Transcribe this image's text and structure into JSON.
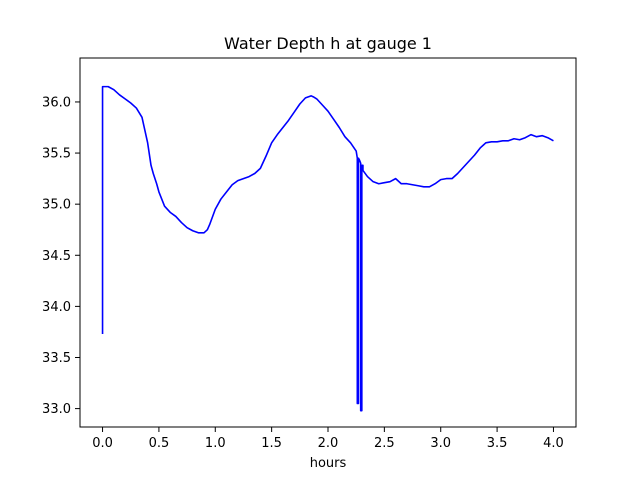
{
  "chart_data": {
    "type": "line",
    "title": "Water Depth h at gauge 1",
    "xlabel": "hours",
    "ylabel": "",
    "xlim": [
      -0.2,
      4.2
    ],
    "ylim": [
      32.82,
      36.43
    ],
    "xticks": [
      0.0,
      0.5,
      1.0,
      1.5,
      2.0,
      2.5,
      3.0,
      3.5,
      4.0
    ],
    "xtick_labels": [
      "0.0",
      "0.5",
      "1.0",
      "1.5",
      "2.0",
      "2.5",
      "3.0",
      "3.5",
      "4.0"
    ],
    "yticks": [
      33.0,
      33.5,
      34.0,
      34.5,
      35.0,
      35.5,
      36.0
    ],
    "ytick_labels": [
      "33.0",
      "33.5",
      "34.0",
      "34.5",
      "35.0",
      "35.5",
      "36.0"
    ],
    "grid": false,
    "legend": false,
    "series": [
      {
        "color": "#0000ff",
        "x": [
          0.0,
          0.0,
          0.05,
          0.1,
          0.15,
          0.2,
          0.25,
          0.3,
          0.35,
          0.4,
          0.43,
          0.45,
          0.48,
          0.5,
          0.55,
          0.6,
          0.65,
          0.7,
          0.75,
          0.8,
          0.85,
          0.9,
          0.93,
          0.95,
          1.0,
          1.05,
          1.1,
          1.15,
          1.2,
          1.25,
          1.3,
          1.35,
          1.4,
          1.45,
          1.5,
          1.55,
          1.6,
          1.65,
          1.7,
          1.75,
          1.8,
          1.85,
          1.87,
          1.9,
          1.95,
          2.0,
          2.05,
          2.1,
          2.15,
          2.2,
          2.25,
          2.26,
          2.26,
          2.27,
          2.27,
          2.28,
          2.29,
          2.29,
          2.3,
          2.3,
          2.31,
          2.31,
          2.35,
          2.4,
          2.45,
          2.5,
          2.55,
          2.6,
          2.65,
          2.7,
          2.75,
          2.8,
          2.85,
          2.9,
          2.95,
          3.0,
          3.05,
          3.1,
          3.15,
          3.2,
          3.25,
          3.3,
          3.35,
          3.38,
          3.4,
          3.45,
          3.5,
          3.55,
          3.6,
          3.65,
          3.7,
          3.75,
          3.8,
          3.85,
          3.9,
          3.95,
          4.0
        ],
        "values": [
          33.73,
          36.15,
          36.15,
          36.12,
          36.07,
          36.03,
          35.99,
          35.94,
          35.85,
          35.6,
          35.38,
          35.3,
          35.2,
          35.12,
          34.98,
          34.92,
          34.88,
          34.82,
          34.77,
          34.74,
          34.72,
          34.72,
          34.75,
          34.8,
          34.95,
          35.05,
          35.12,
          35.19,
          35.23,
          35.25,
          35.27,
          35.3,
          35.35,
          35.47,
          35.6,
          35.68,
          35.75,
          35.82,
          35.9,
          35.98,
          36.04,
          36.06,
          36.05,
          36.03,
          35.97,
          35.91,
          35.83,
          35.75,
          35.66,
          35.6,
          35.52,
          35.45,
          33.05,
          33.05,
          35.45,
          35.43,
          35.4,
          32.98,
          32.98,
          35.38,
          35.38,
          35.33,
          35.27,
          35.22,
          35.2,
          35.21,
          35.22,
          35.25,
          35.2,
          35.2,
          35.19,
          35.18,
          35.17,
          35.17,
          35.2,
          35.24,
          35.25,
          35.25,
          35.3,
          35.36,
          35.42,
          35.48,
          35.55,
          35.58,
          35.6,
          35.61,
          35.61,
          35.62,
          35.62,
          35.64,
          35.63,
          35.65,
          35.68,
          35.66,
          35.67,
          35.65,
          35.62
        ]
      }
    ]
  }
}
